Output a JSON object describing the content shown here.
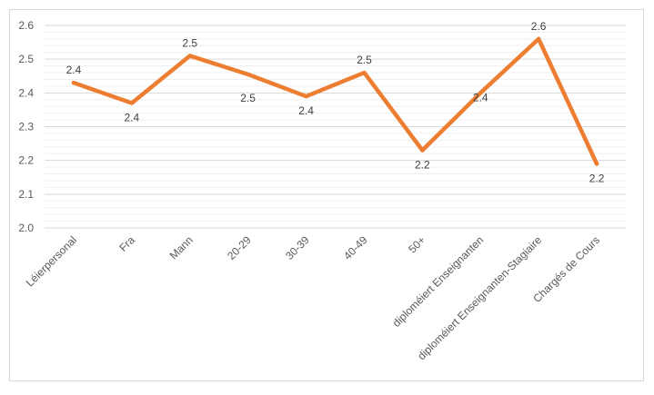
{
  "chart_data": {
    "type": "line",
    "title": "",
    "xlabel": "",
    "ylabel": "",
    "categories": [
      "Léierpersonal",
      "Fra",
      "Mann",
      "20-29",
      "30-39",
      "40-49",
      "50+",
      "diploméiert Enseignanten",
      "diploméiert Enseignanten-Stagiaire",
      "Chargés de Cours"
    ],
    "series": [
      {
        "values": [
          2.43,
          2.37,
          2.51,
          2.455,
          2.39,
          2.46,
          2.23,
          2.4,
          2.56,
          2.19
        ],
        "data_labels": [
          "2.4",
          "2.4",
          "2.5",
          "2.5",
          "2.4",
          "2.5",
          "2.2",
          "2.4",
          "2.6",
          "2.2"
        ],
        "color": "#ed7d31"
      }
    ],
    "ylim": [
      2.0,
      2.6
    ],
    "yticks": [
      "2.0",
      "2.1",
      "2.2",
      "2.3",
      "2.4",
      "2.5",
      "2.6"
    ],
    "grid": true,
    "legend": "none"
  }
}
